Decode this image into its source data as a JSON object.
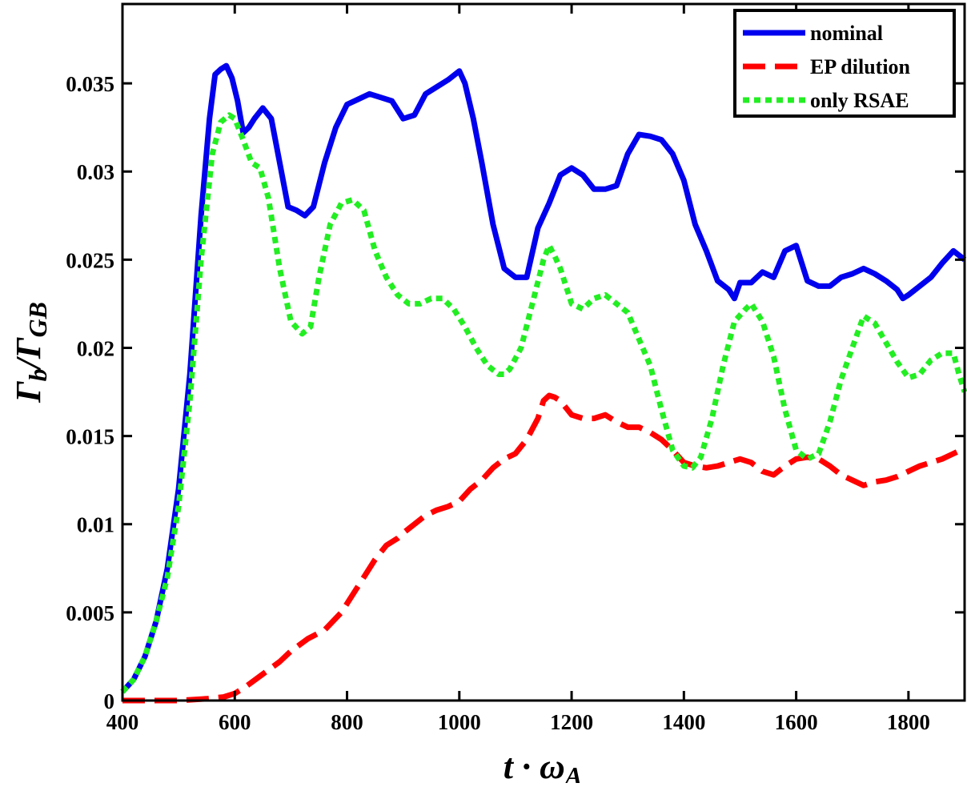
{
  "chart_data": {
    "type": "line",
    "title": "",
    "xlabel": "t · ω_A",
    "ylabel": "Γ_b/Γ_GB",
    "xlim": [
      400,
      1900
    ],
    "ylim": [
      0,
      0.0395
    ],
    "x_ticks": [
      400,
      600,
      800,
      1000,
      1200,
      1400,
      1600,
      1800
    ],
    "x_tick_labels": [
      "400",
      "600",
      "800",
      "1000",
      "1200",
      "1400",
      "1600",
      "1800"
    ],
    "y_ticks": [
      0,
      0.005,
      0.01,
      0.015,
      0.02,
      0.025,
      0.03,
      0.035
    ],
    "y_tick_labels": [
      "0",
      "0.005",
      "0.01",
      "0.015",
      "0.02",
      "0.025",
      "0.03",
      "0.035"
    ],
    "grid": false,
    "legend_position": "top-right",
    "series": [
      {
        "name": "nominal",
        "color": "#0000ee",
        "style": "solid",
        "x": [
          400,
          420,
          440,
          460,
          480,
          500,
          520,
          540,
          555,
          565,
          575,
          585,
          595,
          605,
          615,
          625,
          635,
          650,
          665,
          680,
          695,
          710,
          725,
          740,
          760,
          780,
          800,
          820,
          840,
          860,
          880,
          900,
          920,
          940,
          960,
          980,
          1000,
          1010,
          1025,
          1040,
          1060,
          1080,
          1100,
          1120,
          1140,
          1160,
          1180,
          1200,
          1220,
          1240,
          1260,
          1280,
          1300,
          1320,
          1340,
          1360,
          1380,
          1400,
          1420,
          1440,
          1460,
          1480,
          1490,
          1500,
          1520,
          1540,
          1560,
          1580,
          1600,
          1620,
          1640,
          1660,
          1680,
          1700,
          1720,
          1740,
          1760,
          1780,
          1790,
          1800,
          1820,
          1840,
          1860,
          1880,
          1900
        ],
        "y": [
          0.0005,
          0.0012,
          0.0025,
          0.0045,
          0.0075,
          0.012,
          0.0185,
          0.0275,
          0.033,
          0.0355,
          0.0358,
          0.036,
          0.0353,
          0.034,
          0.0322,
          0.0325,
          0.033,
          0.0336,
          0.033,
          0.0305,
          0.028,
          0.0278,
          0.0275,
          0.028,
          0.0305,
          0.0325,
          0.0338,
          0.0341,
          0.0344,
          0.0342,
          0.034,
          0.033,
          0.0332,
          0.0344,
          0.0348,
          0.0352,
          0.0357,
          0.035,
          0.033,
          0.0305,
          0.027,
          0.0245,
          0.024,
          0.024,
          0.0268,
          0.0282,
          0.0298,
          0.0302,
          0.0298,
          0.029,
          0.029,
          0.0292,
          0.031,
          0.0321,
          0.032,
          0.0318,
          0.031,
          0.0295,
          0.027,
          0.0255,
          0.0238,
          0.0233,
          0.0228,
          0.0237,
          0.0237,
          0.0243,
          0.024,
          0.0255,
          0.0258,
          0.0238,
          0.0235,
          0.0235,
          0.024,
          0.0242,
          0.0245,
          0.0242,
          0.0238,
          0.0233,
          0.0228,
          0.023,
          0.0235,
          0.024,
          0.0248,
          0.0255,
          0.025
        ]
      },
      {
        "name": "EP dilution",
        "color": "#ff0000",
        "style": "dashed",
        "x": [
          400,
          450,
          500,
          550,
          580,
          600,
          620,
          650,
          680,
          700,
          730,
          760,
          790,
          820,
          850,
          870,
          880,
          890,
          900,
          920,
          940,
          960,
          980,
          1000,
          1020,
          1040,
          1060,
          1080,
          1100,
          1120,
          1140,
          1150,
          1160,
          1170,
          1180,
          1200,
          1220,
          1240,
          1260,
          1280,
          1300,
          1320,
          1340,
          1360,
          1380,
          1400,
          1420,
          1440,
          1460,
          1480,
          1500,
          1520,
          1540,
          1560,
          1580,
          1600,
          1620,
          1640,
          1660,
          1680,
          1700,
          1720,
          1740,
          1760,
          1780,
          1800,
          1820,
          1840,
          1860,
          1880,
          1900
        ],
        "y": [
          0.0,
          0.0,
          0.0,
          0.0001,
          0.0002,
          0.0004,
          0.0008,
          0.0015,
          0.0022,
          0.0028,
          0.0035,
          0.004,
          0.005,
          0.0065,
          0.008,
          0.0088,
          0.009,
          0.0092,
          0.0095,
          0.01,
          0.0105,
          0.0108,
          0.011,
          0.0113,
          0.012,
          0.0125,
          0.0132,
          0.0137,
          0.014,
          0.0148,
          0.016,
          0.017,
          0.0173,
          0.0172,
          0.017,
          0.0162,
          0.016,
          0.016,
          0.0162,
          0.0158,
          0.0155,
          0.0155,
          0.0152,
          0.0148,
          0.0142,
          0.0135,
          0.0133,
          0.0132,
          0.0133,
          0.0135,
          0.0137,
          0.0135,
          0.013,
          0.0128,
          0.0133,
          0.0137,
          0.0138,
          0.0137,
          0.0133,
          0.0128,
          0.0125,
          0.0122,
          0.0124,
          0.0125,
          0.0127,
          0.013,
          0.0133,
          0.0135,
          0.0137,
          0.014,
          0.0143
        ]
      },
      {
        "name": "only RSAE",
        "color": "#22ee22",
        "style": "dotted",
        "x": [
          400,
          420,
          440,
          460,
          480,
          500,
          520,
          540,
          560,
          575,
          590,
          600,
          615,
          630,
          645,
          660,
          680,
          700,
          720,
          735,
          750,
          770,
          790,
          810,
          830,
          850,
          870,
          890,
          910,
          930,
          950,
          970,
          990,
          1010,
          1030,
          1050,
          1070,
          1080,
          1090,
          1110,
          1130,
          1150,
          1160,
          1170,
          1180,
          1200,
          1220,
          1240,
          1260,
          1280,
          1300,
          1320,
          1340,
          1360,
          1380,
          1400,
          1415,
          1430,
          1450,
          1470,
          1490,
          1510,
          1520,
          1540,
          1560,
          1580,
          1600,
          1620,
          1640,
          1660,
          1680,
          1700,
          1720,
          1740,
          1760,
          1780,
          1800,
          1820,
          1840,
          1860,
          1880,
          1890,
          1900
        ],
        "y": [
          0.0005,
          0.0012,
          0.0025,
          0.0045,
          0.007,
          0.011,
          0.017,
          0.025,
          0.031,
          0.0328,
          0.0332,
          0.033,
          0.0318,
          0.0305,
          0.0302,
          0.0285,
          0.0245,
          0.0215,
          0.0208,
          0.0212,
          0.024,
          0.027,
          0.0282,
          0.0284,
          0.0278,
          0.0255,
          0.024,
          0.023,
          0.0225,
          0.0225,
          0.0228,
          0.0228,
          0.0222,
          0.0212,
          0.02,
          0.019,
          0.0185,
          0.0185,
          0.0188,
          0.02,
          0.0225,
          0.025,
          0.0258,
          0.0252,
          0.0245,
          0.0225,
          0.0222,
          0.0228,
          0.023,
          0.0225,
          0.022,
          0.0205,
          0.019,
          0.0165,
          0.0142,
          0.0133,
          0.0132,
          0.0138,
          0.016,
          0.019,
          0.0215,
          0.0222,
          0.0225,
          0.0215,
          0.0195,
          0.0165,
          0.0142,
          0.0137,
          0.014,
          0.0158,
          0.0182,
          0.02,
          0.0218,
          0.0214,
          0.0203,
          0.0192,
          0.0183,
          0.0185,
          0.0193,
          0.0197,
          0.0197,
          0.0185,
          0.0175
        ]
      }
    ]
  }
}
